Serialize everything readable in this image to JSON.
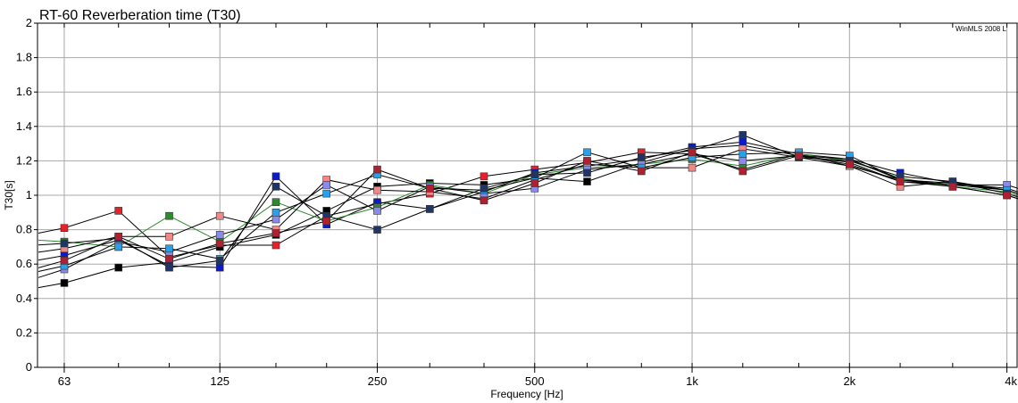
{
  "chart_data": {
    "type": "line",
    "title": "RT-60 Reverberation time (T30)",
    "watermark": "WinMLS 2008 L",
    "xlabel": "Frequency [Hz]",
    "ylabel": "T30[s]",
    "xscale": "log",
    "xlim": [
      56,
      4200
    ],
    "ylim": [
      0,
      2
    ],
    "grid": true,
    "x_tick_labels": [
      {
        "x": 63,
        "label": "63"
      },
      {
        "x": 125,
        "label": "125"
      },
      {
        "x": 250,
        "label": "250"
      },
      {
        "x": 500,
        "label": "500"
      },
      {
        "x": 1000,
        "label": "1k"
      },
      {
        "x": 2000,
        "label": "2k"
      },
      {
        "x": 4000,
        "label": "4k"
      }
    ],
    "y_ticks": [
      0,
      0.2,
      0.4,
      0.6,
      0.8,
      1,
      1.2,
      1.4,
      1.6,
      1.8,
      2
    ],
    "y_tick_labels": [
      "0",
      "0.2",
      "0.4",
      "0.6",
      "0.8",
      "1",
      "1.2",
      "1.4",
      "1.6",
      "1.8",
      "2"
    ],
    "x": [
      63,
      80,
      100,
      125,
      160,
      200,
      250,
      315,
      400,
      500,
      630,
      800,
      1000,
      1250,
      1600,
      2000,
      2500,
      3150,
      4000
    ],
    "series": [
      {
        "color": "#e8202a",
        "values": [
          0.81,
          0.91,
          0.64,
          0.71,
          0.71,
          0.88,
          0.95,
          1.01,
          1.11,
          1.15,
          1.19,
          1.25,
          1.24,
          1.15,
          1.24,
          1.17,
          1.09,
          1.05,
          1.0
        ]
      },
      {
        "color": "#000000",
        "values": [
          0.49,
          0.58,
          0.61,
          0.7,
          0.77,
          0.91,
          1.05,
          1.07,
          1.06,
          1.1,
          1.08,
          1.19,
          1.27,
          1.29,
          1.23,
          1.19,
          1.08,
          1.06,
          1.03
        ]
      },
      {
        "color": "#0a1acc",
        "values": [
          0.65,
          0.74,
          0.59,
          0.58,
          1.11,
          0.83,
          0.96,
          0.92,
          1.02,
          1.13,
          1.17,
          1.21,
          1.28,
          1.31,
          1.24,
          1.21,
          1.13,
          1.07,
          1.04
        ]
      },
      {
        "color": "#2e8a2e",
        "values": [
          0.73,
          0.7,
          0.88,
          0.73,
          0.96,
          0.85,
          0.93,
          1.06,
          1.01,
          1.12,
          1.16,
          1.18,
          1.21,
          1.17,
          1.24,
          1.2,
          1.1,
          1.05,
          1.02
        ]
      },
      {
        "color": "#f08888",
        "values": [
          0.69,
          0.76,
          0.76,
          0.88,
          0.8,
          1.09,
          1.03,
          1.02,
          0.98,
          1.09,
          1.18,
          1.16,
          1.16,
          1.27,
          1.22,
          1.17,
          1.05,
          1.08,
          1.03
        ]
      },
      {
        "color": "#8a8ae8",
        "values": [
          0.57,
          0.73,
          0.67,
          0.77,
          0.86,
          1.06,
          0.91,
          1.05,
          1.01,
          1.04,
          1.15,
          1.18,
          1.24,
          1.2,
          1.23,
          1.21,
          1.09,
          1.06,
          1.06
        ]
      },
      {
        "color": "#2aa0ea",
        "values": [
          0.59,
          0.7,
          0.69,
          0.63,
          0.9,
          1.01,
          1.12,
          1.04,
          1.03,
          1.1,
          1.25,
          1.16,
          1.22,
          1.24,
          1.25,
          1.23,
          1.09,
          1.07,
          1.03
        ]
      },
      {
        "color": "#1f3566",
        "values": [
          0.72,
          0.75,
          0.58,
          0.62,
          1.05,
          0.88,
          0.8,
          0.92,
          1.04,
          1.12,
          1.13,
          1.22,
          1.26,
          1.35,
          1.22,
          1.2,
          1.11,
          1.08,
          1.01
        ]
      },
      {
        "color": "#b02030",
        "values": [
          0.62,
          0.76,
          0.63,
          0.72,
          0.78,
          0.85,
          1.15,
          1.04,
          0.97,
          1.07,
          1.2,
          1.14,
          1.25,
          1.14,
          1.23,
          1.18,
          1.08,
          1.05,
          1.0
        ]
      }
    ]
  }
}
